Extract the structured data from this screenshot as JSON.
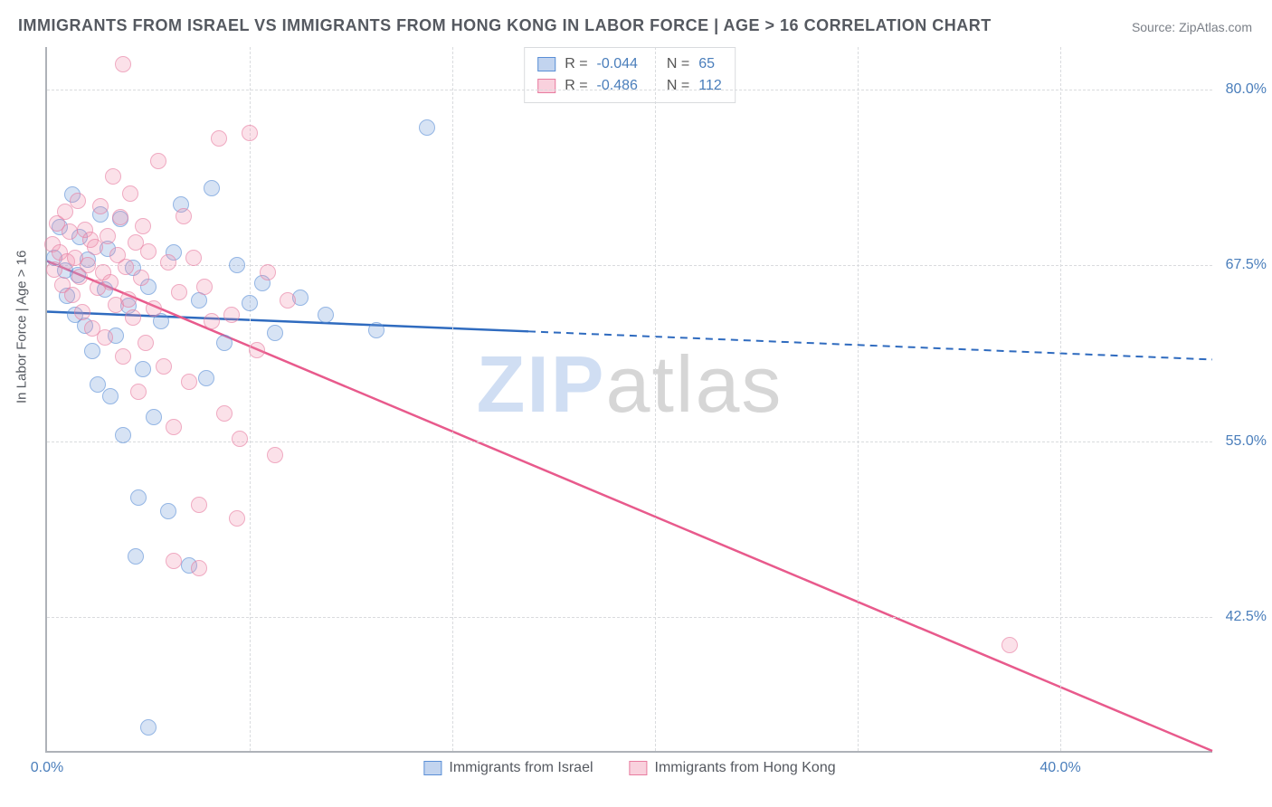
{
  "title": "IMMIGRANTS FROM ISRAEL VS IMMIGRANTS FROM HONG KONG IN LABOR FORCE | AGE > 16 CORRELATION CHART",
  "source_label": "Source: ZipAtlas.com",
  "y_axis_title": "In Labor Force | Age > 16",
  "watermark_part1": "ZIP",
  "watermark_part2": "atlas",
  "chart": {
    "type": "scatter",
    "xlim": [
      0,
      46
    ],
    "ylim": [
      33,
      83
    ],
    "y_ticks": [
      42.5,
      55.0,
      67.5,
      80.0
    ],
    "y_tick_labels": [
      "42.5%",
      "55.0%",
      "67.5%",
      "80.0%"
    ],
    "x_ticks": [
      0,
      40
    ],
    "x_tick_labels": [
      "0.0%",
      "40.0%"
    ],
    "x_minor_ticks": [
      8,
      16,
      24,
      32,
      40
    ],
    "background_color": "#ffffff",
    "grid_color": "#d9dbde",
    "axis_color": "#aeb2b8",
    "tick_label_color": "#4a7ebb",
    "tick_label_fontsize": 16,
    "title_fontsize": 18,
    "title_color": "#555960",
    "marker_size": 18,
    "marker_opacity": 0.65,
    "series": [
      {
        "name": "Immigrants from Israel",
        "color_fill": "rgba(120,160,220,0.45)",
        "color_stroke": "#5a8fd6",
        "R": -0.044,
        "N": 65,
        "trend_line": {
          "x1": 0,
          "y1": 64.2,
          "x2": 19,
          "y2": 62.8,
          "style": "solid",
          "color": "#2f6bbf",
          "width": 2.5
        },
        "trend_line_ext": {
          "x1": 19,
          "y1": 62.8,
          "x2": 46,
          "y2": 60.8,
          "style": "dashed",
          "color": "#2f6bbf",
          "width": 2
        },
        "points": [
          [
            0.3,
            68.0
          ],
          [
            0.5,
            70.2
          ],
          [
            0.7,
            67.1
          ],
          [
            0.8,
            65.3
          ],
          [
            1.0,
            72.5
          ],
          [
            1.1,
            64.0
          ],
          [
            1.2,
            66.8
          ],
          [
            1.3,
            69.5
          ],
          [
            1.5,
            63.2
          ],
          [
            1.6,
            67.9
          ],
          [
            1.8,
            61.4
          ],
          [
            2.0,
            59.0
          ],
          [
            2.1,
            71.1
          ],
          [
            2.3,
            65.8
          ],
          [
            2.4,
            68.7
          ],
          [
            2.5,
            58.2
          ],
          [
            2.7,
            62.5
          ],
          [
            2.9,
            70.8
          ],
          [
            3.0,
            55.4
          ],
          [
            3.2,
            64.6
          ],
          [
            3.4,
            67.3
          ],
          [
            3.6,
            51.0
          ],
          [
            3.8,
            60.1
          ],
          [
            4.0,
            66.0
          ],
          [
            4.2,
            56.7
          ],
          [
            4.5,
            63.5
          ],
          [
            4.8,
            50.0
          ],
          [
            5.0,
            68.4
          ],
          [
            5.3,
            71.8
          ],
          [
            5.6,
            46.2
          ],
          [
            6.0,
            65.0
          ],
          [
            6.3,
            59.5
          ],
          [
            6.5,
            73.0
          ],
          [
            7.0,
            62.0
          ],
          [
            7.5,
            67.5
          ],
          [
            8.0,
            64.8
          ],
          [
            8.5,
            66.2
          ],
          [
            9.0,
            62.7
          ],
          [
            10.0,
            65.2
          ],
          [
            11.0,
            64.0
          ],
          [
            13.0,
            62.9
          ],
          [
            15.0,
            77.3
          ],
          [
            4.0,
            34.7
          ],
          [
            3.5,
            46.8
          ]
        ]
      },
      {
        "name": "Immigrants from Hong Kong",
        "color_fill": "rgba(240,140,170,0.40)",
        "color_stroke": "#e87ca0",
        "R": -0.486,
        "N": 112,
        "trend_line": {
          "x1": 0,
          "y1": 67.8,
          "x2": 46,
          "y2": 33.0,
          "style": "solid",
          "color": "#e85a8c",
          "width": 2.5
        },
        "points": [
          [
            0.2,
            69.0
          ],
          [
            0.3,
            67.2
          ],
          [
            0.4,
            70.5
          ],
          [
            0.5,
            68.4
          ],
          [
            0.6,
            66.1
          ],
          [
            0.7,
            71.3
          ],
          [
            0.8,
            67.8
          ],
          [
            0.9,
            69.9
          ],
          [
            1.0,
            65.4
          ],
          [
            1.1,
            68.0
          ],
          [
            1.2,
            72.1
          ],
          [
            1.3,
            66.7
          ],
          [
            1.4,
            64.2
          ],
          [
            1.5,
            70.0
          ],
          [
            1.6,
            67.5
          ],
          [
            1.7,
            69.3
          ],
          [
            1.8,
            63.0
          ],
          [
            1.9,
            68.8
          ],
          [
            2.0,
            65.9
          ],
          [
            2.1,
            71.7
          ],
          [
            2.2,
            67.0
          ],
          [
            2.3,
            62.4
          ],
          [
            2.4,
            69.6
          ],
          [
            2.5,
            66.3
          ],
          [
            2.6,
            73.8
          ],
          [
            2.7,
            64.7
          ],
          [
            2.8,
            68.2
          ],
          [
            2.9,
            70.9
          ],
          [
            3.0,
            61.0
          ],
          [
            3.1,
            67.4
          ],
          [
            3.2,
            65.1
          ],
          [
            3.3,
            72.6
          ],
          [
            3.4,
            63.8
          ],
          [
            3.5,
            69.1
          ],
          [
            3.6,
            58.5
          ],
          [
            3.7,
            66.6
          ],
          [
            3.8,
            70.3
          ],
          [
            3.9,
            62.0
          ],
          [
            4.0,
            68.5
          ],
          [
            4.2,
            64.4
          ],
          [
            4.4,
            74.9
          ],
          [
            4.6,
            60.3
          ],
          [
            4.8,
            67.7
          ],
          [
            5.0,
            56.0
          ],
          [
            5.2,
            65.6
          ],
          [
            5.4,
            71.0
          ],
          [
            5.6,
            59.2
          ],
          [
            5.8,
            68.0
          ],
          [
            6.0,
            50.5
          ],
          [
            6.2,
            66.0
          ],
          [
            6.5,
            63.5
          ],
          [
            6.8,
            76.5
          ],
          [
            7.0,
            57.0
          ],
          [
            7.3,
            64.0
          ],
          [
            7.6,
            55.2
          ],
          [
            8.0,
            76.9
          ],
          [
            8.3,
            61.5
          ],
          [
            8.7,
            67.0
          ],
          [
            9.0,
            54.0
          ],
          [
            9.5,
            65.0
          ],
          [
            3.0,
            81.8
          ],
          [
            38.0,
            40.5
          ],
          [
            5.0,
            46.5
          ],
          [
            6.0,
            46.0
          ],
          [
            7.5,
            49.5
          ]
        ]
      }
    ]
  },
  "legend_top": {
    "rows": [
      {
        "swatch": "blue",
        "R_label": "R = ",
        "R_val": "-0.044",
        "N_label": "N = ",
        "N_val": "65"
      },
      {
        "swatch": "pink",
        "R_label": "R = ",
        "R_val": "-0.486",
        "N_label": "N = ",
        "N_val": "112"
      }
    ]
  },
  "bottom_legend": {
    "items": [
      {
        "swatch": "blue",
        "label": "Immigrants from Israel"
      },
      {
        "swatch": "pink",
        "label": "Immigrants from Hong Kong"
      }
    ]
  }
}
